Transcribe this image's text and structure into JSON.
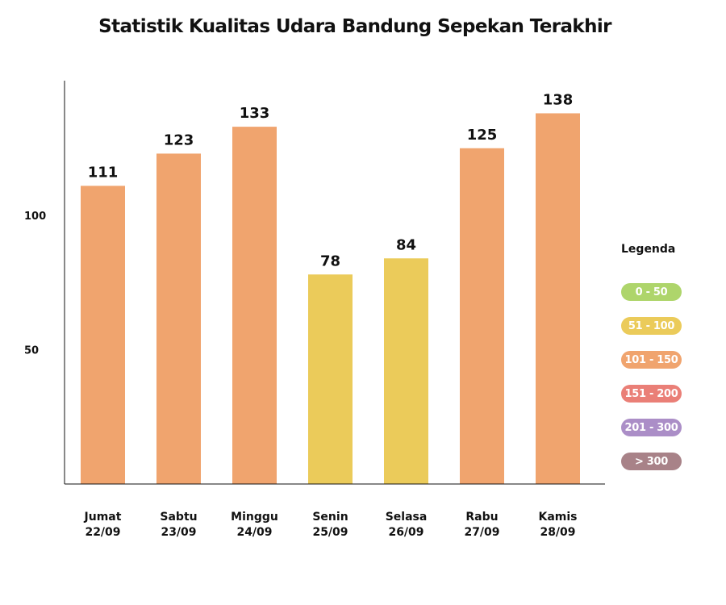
{
  "chart_data": {
    "type": "bar",
    "title": "Statistik Kualitas Udara Bandung Sepekan Terakhir",
    "categories": [
      {
        "day": "Jumat",
        "date": "22/09"
      },
      {
        "day": "Sabtu",
        "date": "23/09"
      },
      {
        "day": "Minggu",
        "date": "24/09"
      },
      {
        "day": "Senin",
        "date": "25/09"
      },
      {
        "day": "Selasa",
        "date": "26/09"
      },
      {
        "day": "Rabu",
        "date": "27/09"
      },
      {
        "day": "Kamis",
        "date": "28/09"
      }
    ],
    "values": [
      111,
      123,
      133,
      78,
      84,
      125,
      138
    ],
    "bar_colors": [
      "#f0a46e",
      "#f0a46e",
      "#f0a46e",
      "#ebcb5a",
      "#ebcb5a",
      "#f0a46e",
      "#f0a46e"
    ],
    "yticks": [
      50,
      100
    ],
    "ylim": [
      0,
      150
    ],
    "grid": false,
    "legend": {
      "title": "Legenda",
      "placement": "right",
      "items": [
        {
          "label": "0 - 50",
          "color": "#aed56b"
        },
        {
          "label": "51 - 100",
          "color": "#ebcb5a"
        },
        {
          "label": "101 - 150",
          "color": "#f0a46e"
        },
        {
          "label": "151 - 200",
          "color": "#ea7f77"
        },
        {
          "label": "201 - 300",
          "color": "#ab8ec7"
        },
        {
          "label": "> 300",
          "color": "#a88288"
        }
      ]
    }
  }
}
